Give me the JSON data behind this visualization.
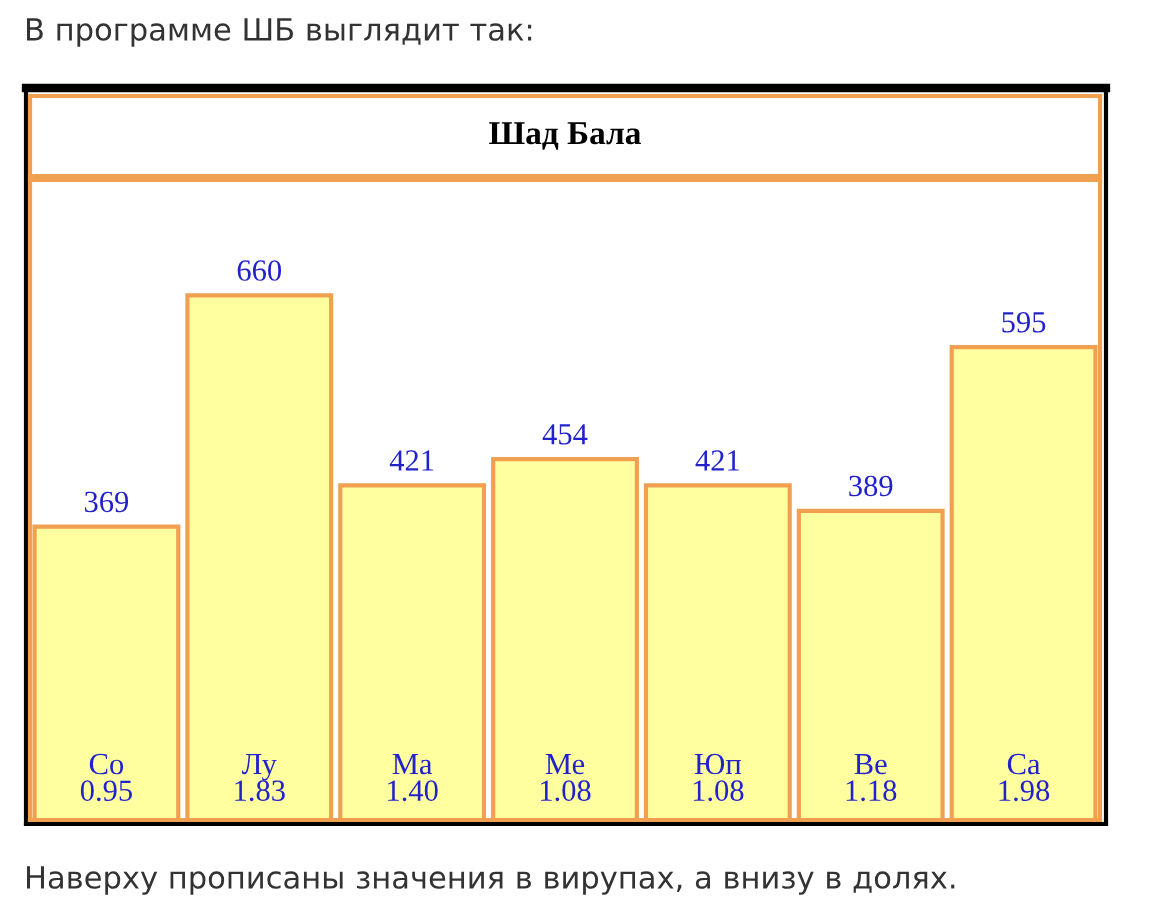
{
  "chart_data": {
    "type": "bar",
    "title": "Шад Бала",
    "categories": [
      "Со\n0.95",
      "Лу\n1.83",
      "Ма\n1.40",
      "Ме\n1.08",
      "Юп\n1.08",
      "Ве\n1.18",
      "Са\n1.98"
    ],
    "values": [
      369,
      660,
      421,
      454,
      421,
      389,
      595
    ],
    "color": "#ffffa0",
    "data_labels": true,
    "annotations": [
      "В программе ШБ выглядит так:",
      "Наверху прописаны значения в вирупах, а внизу в долях."
    ]
  }
}
